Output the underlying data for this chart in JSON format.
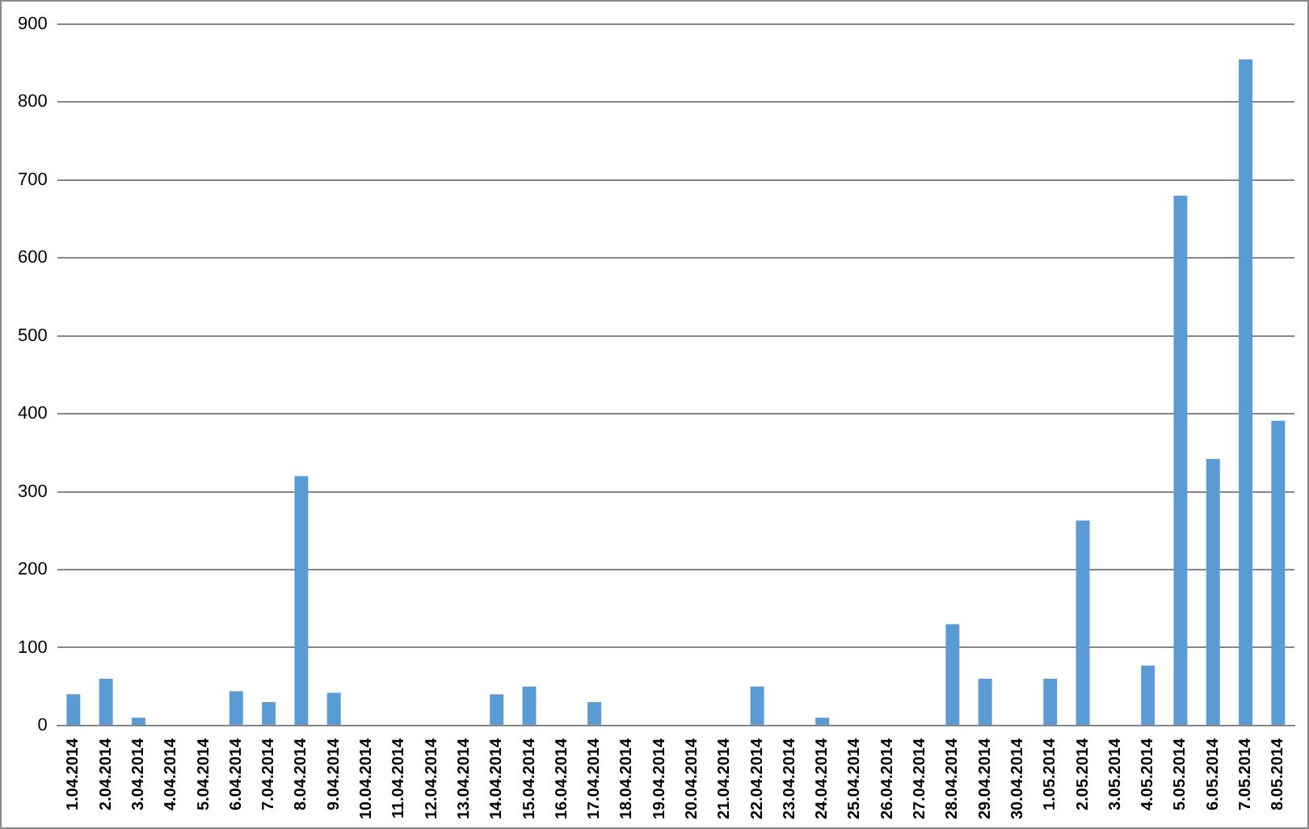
{
  "chart_data": {
    "type": "bar",
    "categories": [
      "1.04.2014",
      "2.04.2014",
      "3.04.2014",
      "4.04.2014",
      "5.04.2014",
      "6.04.2014",
      "7.04.2014",
      "8.04.2014",
      "9.04.2014",
      "10.04.2014",
      "11.04.2014",
      "12.04.2014",
      "13.04.2014",
      "14.04.2014",
      "15.04.2014",
      "16.04.2014",
      "17.04.2014",
      "18.04.2014",
      "19.04.2014",
      "20.04.2014",
      "21.04.2014",
      "22.04.2014",
      "23.04.2014",
      "24.04.2014",
      "25.04.2014",
      "26.04.2014",
      "27.04.2014",
      "28.04.2014",
      "29.04.2014",
      "30.04.2014",
      "1.05.2014",
      "2.05.2014",
      "3.05.2014",
      "4.05.2014",
      "5.05.2014",
      "6.05.2014",
      "7.05.2014",
      "8.05.2014"
    ],
    "values": [
      40,
      60,
      10,
      0,
      0,
      44,
      30,
      320,
      42,
      0,
      0,
      0,
      0,
      40,
      50,
      0,
      30,
      0,
      0,
      0,
      0,
      50,
      0,
      10,
      0,
      0,
      0,
      130,
      60,
      0,
      60,
      263,
      0,
      77,
      680,
      342,
      855,
      391
    ],
    "color": "#5b9bd5",
    "ylim": [
      0,
      900
    ],
    "yticks": [
      0,
      100,
      200,
      300,
      400,
      500,
      600,
      700,
      800,
      900
    ],
    "grid": "y",
    "legend": false
  }
}
